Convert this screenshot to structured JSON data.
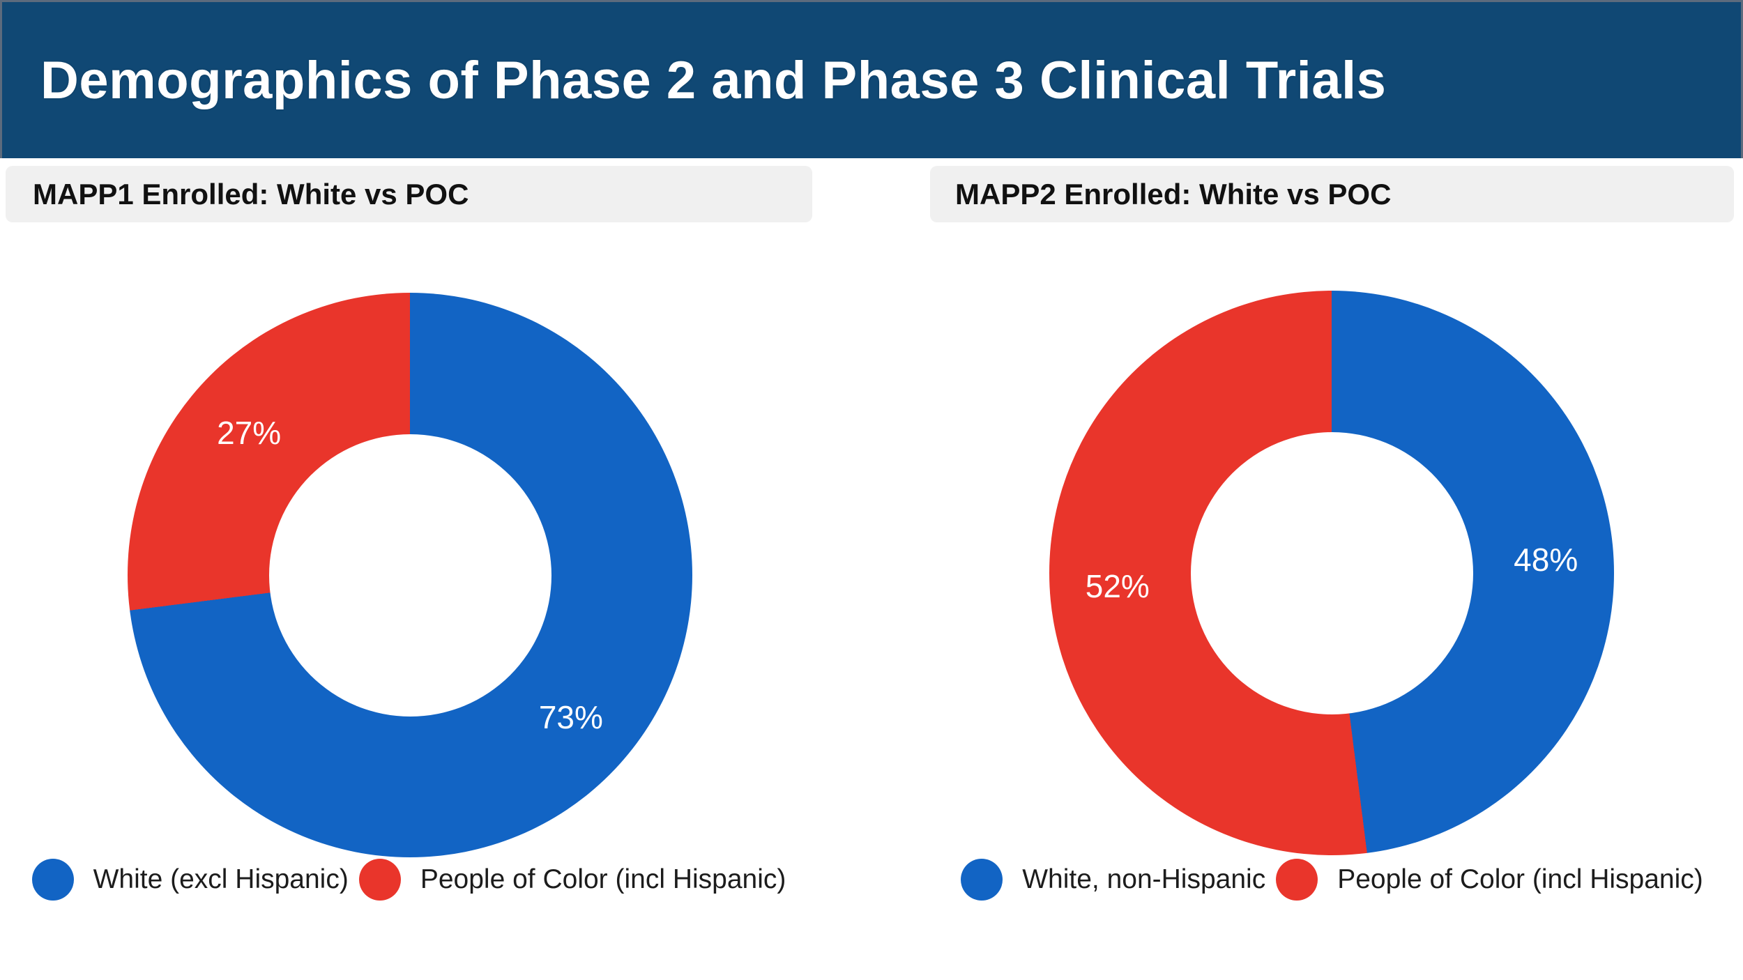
{
  "banner": {
    "title": "Demographics of Phase 2 and Phase 3 Clinical Trials",
    "bg": "#104874",
    "border": "#5D6B7D"
  },
  "colors": {
    "blue": "#1264C4",
    "red": "#E9352B"
  },
  "panels": [
    {
      "header": "MAPP1 Enrolled: White vs POC",
      "slices": [
        {
          "label": "White (excl Hispanic)",
          "value": 73,
          "display": "73%",
          "color": "blue"
        },
        {
          "label": "People of Color (incl Hispanic)",
          "value": 27,
          "display": "27%",
          "color": "red"
        }
      ],
      "legend": [
        {
          "label": "White (excl Hispanic)",
          "color": "blue"
        },
        {
          "label": "People of Color (incl Hispanic)",
          "color": "red"
        }
      ]
    },
    {
      "header": "MAPP2 Enrolled: White vs POC",
      "slices": [
        {
          "label": "White, non-Hispanic",
          "value": 48,
          "display": "48%",
          "color": "blue"
        },
        {
          "label": "People of Color (incl Hispanic)",
          "value": 52,
          "display": "52%",
          "color": "red"
        }
      ],
      "legend": [
        {
          "label": "White, non-Hispanic",
          "color": "blue"
        },
        {
          "label": "People of Color (incl Hispanic)",
          "color": "red"
        }
      ]
    }
  ],
  "chart_data": [
    {
      "type": "pie",
      "title": "MAPP1 Enrolled: White vs POC",
      "labels": [
        "White (excl Hispanic)",
        "People of Color (incl Hispanic)"
      ],
      "values": [
        73,
        27
      ],
      "data_labels": [
        "73%",
        "27%"
      ],
      "colors": [
        "#1264C4",
        "#E9352B"
      ],
      "hole_ratio": 0.5,
      "start_angle_deg": 0,
      "direction": "clockwise",
      "legend_position": "bottom"
    },
    {
      "type": "pie",
      "title": "MAPP2 Enrolled: White vs POC",
      "labels": [
        "White, non-Hispanic",
        "People of Color (incl Hispanic)"
      ],
      "values": [
        48,
        52
      ],
      "data_labels": [
        "48%",
        "52%"
      ],
      "colors": [
        "#1264C4",
        "#E9352B"
      ],
      "hole_ratio": 0.5,
      "start_angle_deg": 0,
      "direction": "clockwise",
      "legend_position": "bottom"
    }
  ]
}
